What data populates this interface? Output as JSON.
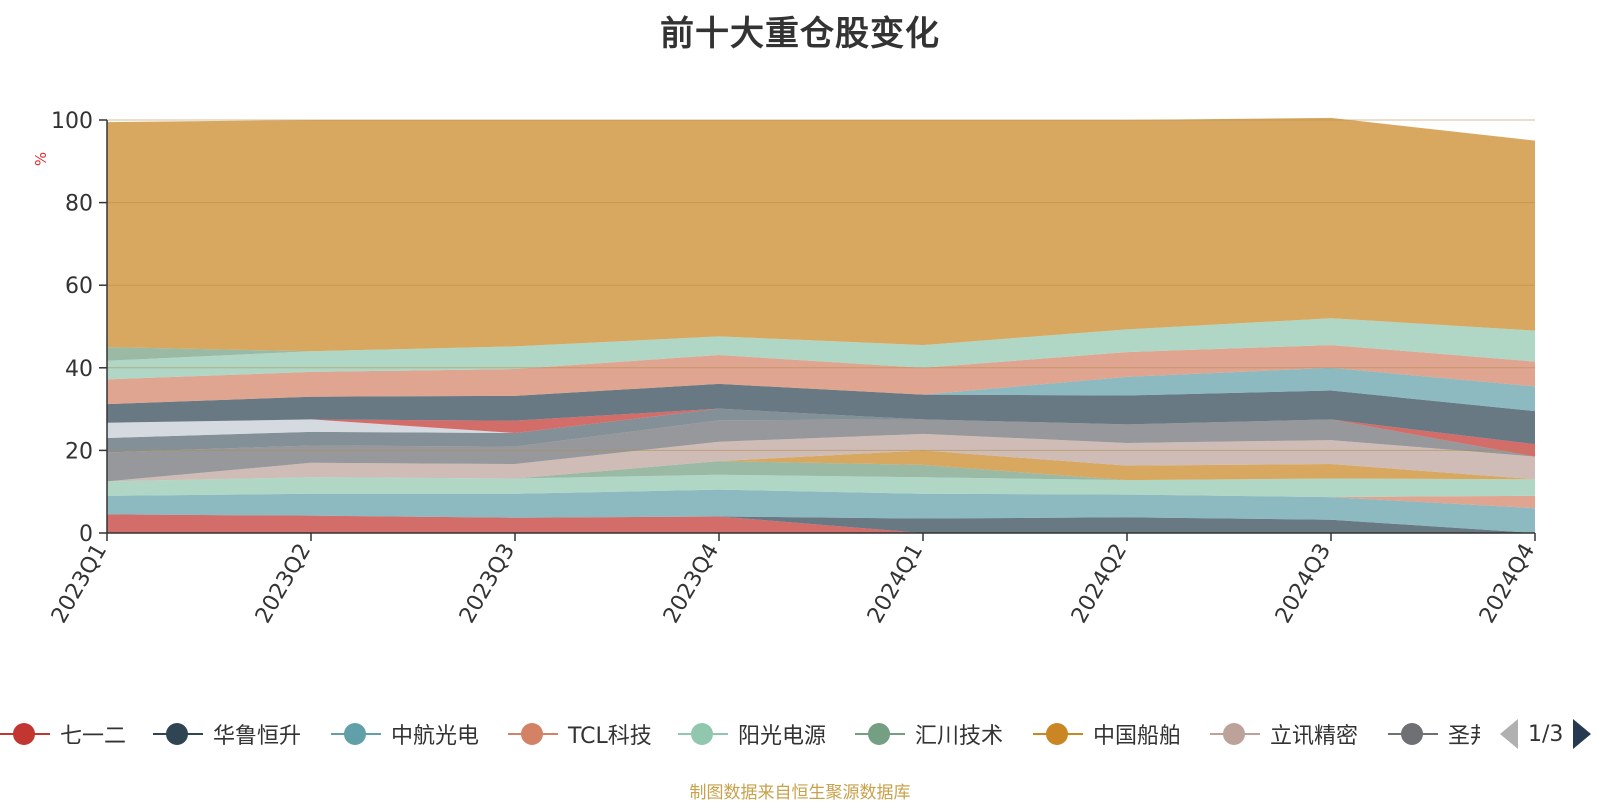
{
  "title": "前十大重仓股变化",
  "source_note": "制图数据来自恒生聚源数据库",
  "pager": {
    "text": "1/3"
  },
  "legend": [
    {
      "name": "七一二",
      "color": "#c23531"
    },
    {
      "name": "华鲁恒升",
      "color": "#2f4554"
    },
    {
      "name": "中航光电",
      "color": "#61a0a8"
    },
    {
      "name": "TCL科技",
      "color": "#d48265"
    },
    {
      "name": "阳光电源",
      "color": "#91c7ae"
    },
    {
      "name": "汇川技术",
      "color": "#749f83"
    },
    {
      "name": "中国船舶",
      "color": "#ca8622"
    },
    {
      "name": "立讯精密",
      "color": "#bda29a"
    },
    {
      "name": "圣邦股份",
      "color": "#6e7074"
    }
  ],
  "chart_data": {
    "type": "area",
    "stacked": true,
    "title": "前十大重仓股变化",
    "ylabel": "%",
    "ylim": [
      0,
      100
    ],
    "yticks": [
      0,
      20,
      40,
      60,
      80,
      100
    ],
    "grid": true,
    "x": [
      "2023Q1",
      "2023Q2",
      "2023Q3",
      "2023Q4",
      "2024Q1",
      "2024Q2",
      "2024Q3",
      "2024Q4"
    ],
    "series": [
      {
        "color": "#c23531",
        "values": [
          4.5,
          4.2,
          3.7,
          4.0,
          0.0,
          0.0,
          0.0,
          0.0
        ]
      },
      {
        "color": "#2f4554",
        "values": [
          0.0,
          0.0,
          0.0,
          0.0,
          3.5,
          3.8,
          3.2,
          0.0
        ]
      },
      {
        "color": "#61a0a8",
        "values": [
          4.5,
          5.3,
          5.8,
          6.5,
          6.0,
          5.5,
          5.5,
          6.0
        ]
      },
      {
        "color": "#d48265",
        "values": [
          0.0,
          0.0,
          0.0,
          0.0,
          0.0,
          0.0,
          0.0,
          3.0
        ]
      },
      {
        "color": "#91c7ae",
        "values": [
          3.5,
          4.0,
          3.7,
          3.6,
          4.0,
          3.5,
          4.5,
          4.0
        ]
      },
      {
        "color": "#749f83",
        "values": [
          0.0,
          0.0,
          0.0,
          3.3,
          3.0,
          0.0,
          0.0,
          0.0
        ]
      },
      {
        "color": "#ca8622",
        "values": [
          0.0,
          0.0,
          0.0,
          0.0,
          3.5,
          3.5,
          3.5,
          0.0
        ]
      },
      {
        "color": "#bda29a",
        "values": [
          0.0,
          3.5,
          3.5,
          4.7,
          4.0,
          5.5,
          5.8,
          5.5
        ]
      },
      {
        "color": "#6e7074",
        "values": [
          7.0,
          4.2,
          4.2,
          5.2,
          3.5,
          4.5,
          5.0,
          0.0
        ]
      },
      {
        "color": "#546570",
        "values": [
          3.5,
          3.3,
          3.3,
          2.8,
          0.0,
          0.0,
          0.0,
          0.0
        ]
      },
      {
        "color": "#c4ccd3",
        "values": [
          3.7,
          3.0,
          0.0,
          0.0,
          0.0,
          0.0,
          0.0,
          0.0
        ]
      },
      {
        "color": "#c23531",
        "values": [
          0.0,
          0.0,
          3.0,
          0.0,
          0.0,
          0.0,
          0.0,
          3.0
        ]
      },
      {
        "color": "#2f4554",
        "values": [
          4.5,
          5.5,
          6.0,
          6.0,
          6.0,
          7.0,
          7.0,
          8.0
        ]
      },
      {
        "color": "#61a0a8",
        "values": [
          0.0,
          0.0,
          0.0,
          0.0,
          0.0,
          4.5,
          5.5,
          6.0
        ]
      },
      {
        "color": "#d48265",
        "values": [
          6.0,
          6.0,
          6.5,
          7.0,
          6.5,
          6.0,
          5.5,
          6.0
        ]
      },
      {
        "color": "#91c7ae",
        "values": [
          4.5,
          5.0,
          5.5,
          4.5,
          5.5,
          5.5,
          6.5,
          7.5
        ]
      },
      {
        "color": "#749f83",
        "values": [
          3.3,
          0.0,
          0.0,
          0.0,
          0.0,
          0.0,
          0.0,
          0.0
        ]
      },
      {
        "color": "#ca8622",
        "values": [
          54.5,
          56.0,
          54.8,
          52.4,
          54.5,
          50.7,
          48.5,
          46.0
        ]
      }
    ]
  }
}
